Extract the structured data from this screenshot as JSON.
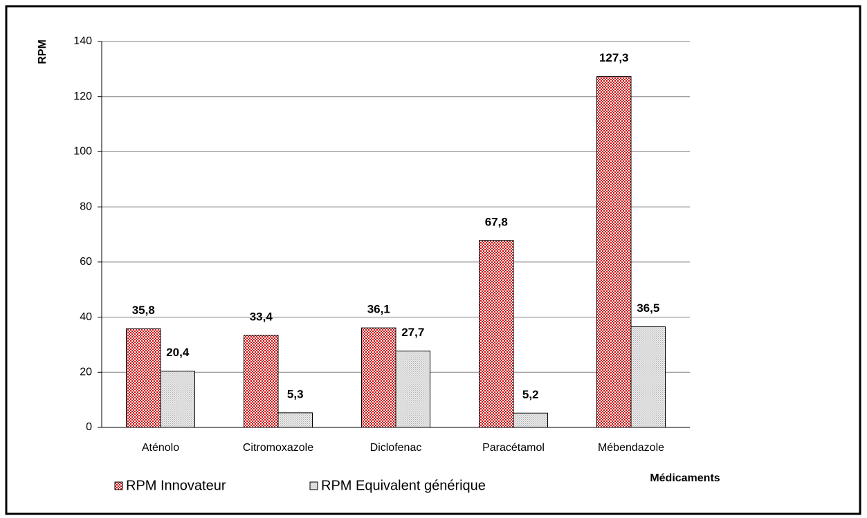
{
  "chart_data": {
    "type": "bar",
    "y_label": "RPM",
    "x_label": "Médicaments",
    "categories": [
      "Aténolo",
      "Citromoxazole",
      "Diclofenac",
      "Paracétamol",
      "Mébendazole"
    ],
    "series": [
      {
        "name": "RPM Innovateur",
        "color": "#d00000",
        "values": [
          35.8,
          33.4,
          36.1,
          67.8,
          127.3
        ],
        "value_labels": [
          "35,8",
          "33,4",
          "36,1",
          "67,8",
          "127,3"
        ]
      },
      {
        "name": "RPM Equivalent générique",
        "color": "#b0b0b0",
        "values": [
          20.4,
          5.3,
          27.7,
          5.2,
          36.5
        ],
        "value_labels": [
          "20,4",
          "5,3",
          "27,7",
          "5,2",
          "36,5"
        ]
      }
    ],
    "ylim": [
      0,
      140
    ],
    "yticks": [
      0,
      20,
      40,
      60,
      80,
      100,
      120,
      140
    ],
    "grid": true
  }
}
